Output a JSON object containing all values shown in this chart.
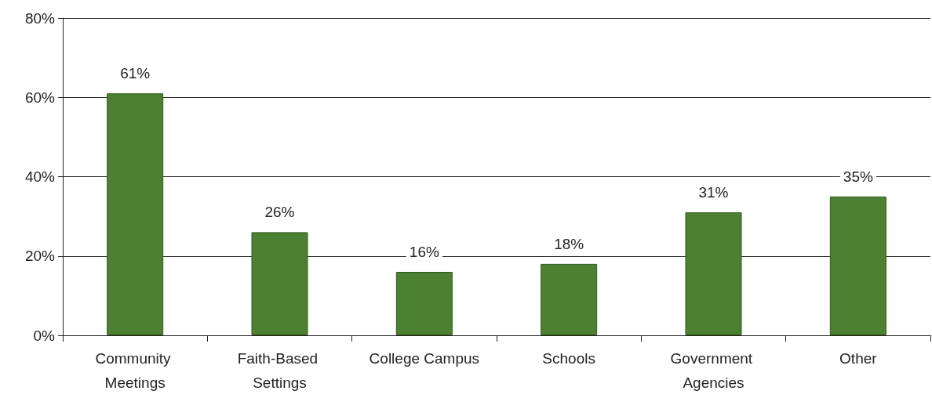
{
  "chart_data": {
    "type": "bar",
    "categories": [
      "Community Meetings",
      "Faith-Based Settings",
      "College Campus",
      "Schools",
      "Government Agencies",
      "Other"
    ],
    "values": [
      61,
      26,
      16,
      18,
      31,
      35
    ],
    "value_labels": [
      "61%",
      "26%",
      "16%",
      "18%",
      "31%",
      "35%"
    ],
    "color": "#4b8130",
    "ylim": [
      0,
      80
    ],
    "yticks": [
      {
        "value": 0,
        "label": "0%"
      },
      {
        "value": 20,
        "label": "20%"
      },
      {
        "value": 40,
        "label": "40%"
      },
      {
        "value": 60,
        "label": "60%"
      },
      {
        "value": 80,
        "label": "80%"
      }
    ],
    "grid": "y"
  }
}
